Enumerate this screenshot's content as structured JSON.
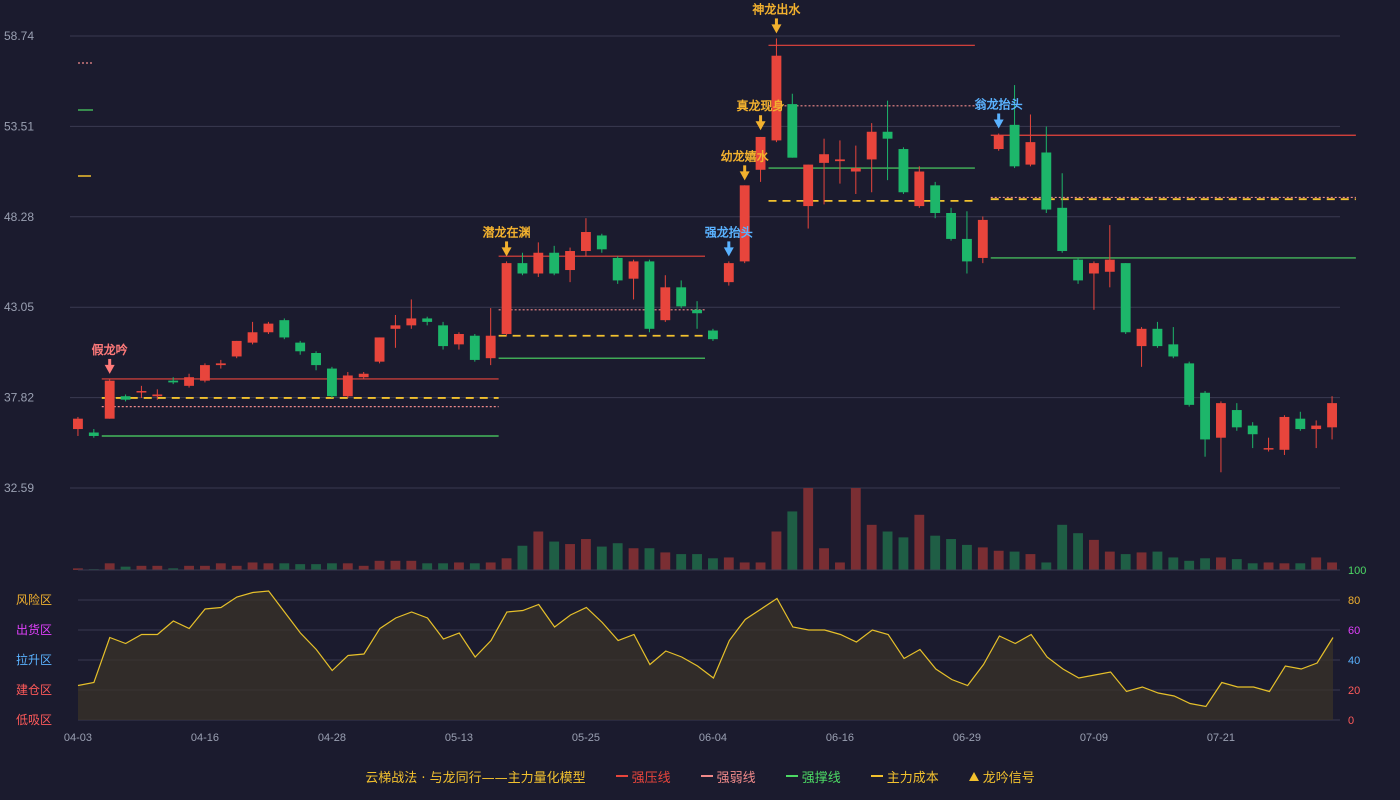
{
  "colors": {
    "background": "#1b1b2e",
    "up": "#e8453c",
    "down": "#1db66a",
    "grid": "#3a3a50",
    "axis_text": "#9aa0b2",
    "pressure": "#e8453c",
    "weak": "#f08a8a",
    "support": "#4cd964",
    "cost": "#f2c12e",
    "gold": "#f2b12e",
    "blue": "#5ab2ff",
    "pink": "#ff7a7a"
  },
  "legend": {
    "title": "云梯战法 · 与龙同行——主力量化模型",
    "pressure_label": "强压线",
    "weak_label": "强弱线",
    "support_label": "强撑线",
    "cost_label": "主力成本",
    "signal_label": "龙吟信号"
  },
  "chart_data": {
    "type": "candlestick",
    "y_ticks": [
      "58.74",
      "53.51",
      "48.28",
      "43.05",
      "37.82",
      "32.59"
    ],
    "ylim": [
      32.59,
      58.74
    ],
    "x_labels": [
      "04-03",
      "04-16",
      "04-28",
      "05-13",
      "05-25",
      "06-04",
      "06-16",
      "06-29",
      "07-09",
      "07-21"
    ],
    "x_label_index": [
      0,
      8,
      16,
      24,
      32,
      40,
      48,
      56,
      64,
      72
    ],
    "candles": [
      [
        36.0,
        36.6,
        35.6,
        36.7
      ],
      [
        35.8,
        35.6,
        35.5,
        36.0
      ],
      [
        36.6,
        38.8,
        36.6,
        38.9
      ],
      [
        37.9,
        37.7,
        37.6,
        38.0
      ],
      [
        38.2,
        38.2,
        37.8,
        38.5
      ],
      [
        37.9,
        38.0,
        37.7,
        38.3
      ],
      [
        38.8,
        38.7,
        38.6,
        39.0
      ],
      [
        38.5,
        39.0,
        38.4,
        39.2
      ],
      [
        38.8,
        39.7,
        38.7,
        39.8
      ],
      [
        39.7,
        39.8,
        39.5,
        40.0
      ],
      [
        40.2,
        41.1,
        40.1,
        41.1
      ],
      [
        41.0,
        41.6,
        40.9,
        42.2
      ],
      [
        41.6,
        42.1,
        41.5,
        42.2
      ],
      [
        42.3,
        41.3,
        41.2,
        42.4
      ],
      [
        41.0,
        40.5,
        40.3,
        41.1
      ],
      [
        40.4,
        39.7,
        39.4,
        40.5
      ],
      [
        39.5,
        37.9,
        37.8,
        39.6
      ],
      [
        37.9,
        39.1,
        37.8,
        39.3
      ],
      [
        39.0,
        39.2,
        38.9,
        39.3
      ],
      [
        39.9,
        41.3,
        39.8,
        41.3
      ],
      [
        41.8,
        42.0,
        40.7,
        42.6
      ],
      [
        42.0,
        42.4,
        41.8,
        43.5
      ],
      [
        42.4,
        42.2,
        42.0,
        42.5
      ],
      [
        42.0,
        40.8,
        40.6,
        42.2
      ],
      [
        40.9,
        41.5,
        40.6,
        41.6
      ],
      [
        41.4,
        40.0,
        39.9,
        41.5
      ],
      [
        40.1,
        41.4,
        39.7,
        43.0
      ],
      [
        41.5,
        45.6,
        41.4,
        45.7
      ],
      [
        45.6,
        45.0,
        44.9,
        46.2
      ],
      [
        45.0,
        46.2,
        44.8,
        46.8
      ],
      [
        46.2,
        45.0,
        44.9,
        46.6
      ],
      [
        45.2,
        46.3,
        44.5,
        46.5
      ],
      [
        46.3,
        47.4,
        46.0,
        48.2
      ],
      [
        47.2,
        46.4,
        46.2,
        47.3
      ],
      [
        45.9,
        44.6,
        44.4,
        46.0
      ],
      [
        44.7,
        45.7,
        43.5,
        45.8
      ],
      [
        45.7,
        41.8,
        41.6,
        45.8
      ],
      [
        42.3,
        44.2,
        42.2,
        44.9
      ],
      [
        44.2,
        43.1,
        43.0,
        44.6
      ],
      [
        42.9,
        42.7,
        41.8,
        43.4
      ],
      [
        41.7,
        41.2,
        41.1,
        41.8
      ],
      [
        44.5,
        45.6,
        44.3,
        45.7
      ],
      [
        45.7,
        50.1,
        45.6,
        50.1
      ],
      [
        51.0,
        52.9,
        50.3,
        52.9
      ],
      [
        52.7,
        57.6,
        52.6,
        58.6
      ],
      [
        54.8,
        51.7,
        51.7,
        55.4
      ],
      [
        48.9,
        51.3,
        47.6,
        51.3
      ],
      [
        51.4,
        51.9,
        49.0,
        52.8
      ],
      [
        51.5,
        51.6,
        50.2,
        52.7
      ],
      [
        50.9,
        51.1,
        49.6,
        52.4
      ],
      [
        51.6,
        53.2,
        49.7,
        53.7
      ],
      [
        53.2,
        52.8,
        50.4,
        55.0
      ],
      [
        52.2,
        49.7,
        49.6,
        52.3
      ],
      [
        48.9,
        50.9,
        48.8,
        51.2
      ],
      [
        50.1,
        48.5,
        48.2,
        50.3
      ],
      [
        48.5,
        47.0,
        46.9,
        48.8
      ],
      [
        47.0,
        45.7,
        45.0,
        48.6
      ],
      [
        45.9,
        48.1,
        45.6,
        48.3
      ],
      [
        52.2,
        53.0,
        52.1,
        53.1
      ],
      [
        53.6,
        51.2,
        51.1,
        55.9
      ],
      [
        51.3,
        52.6,
        51.2,
        54.2
      ],
      [
        52.0,
        48.7,
        48.5,
        53.5
      ],
      [
        48.8,
        46.3,
        46.2,
        50.8
      ],
      [
        45.8,
        44.6,
        44.4,
        45.9
      ],
      [
        45.0,
        45.6,
        42.9,
        45.7
      ],
      [
        45.1,
        45.8,
        44.2,
        47.8
      ],
      [
        45.6,
        41.6,
        41.5,
        45.6
      ],
      [
        40.8,
        41.8,
        39.6,
        41.9
      ],
      [
        41.8,
        40.8,
        40.7,
        42.2
      ],
      [
        40.9,
        40.2,
        40.1,
        41.9
      ],
      [
        39.8,
        37.4,
        37.3,
        39.9
      ],
      [
        38.1,
        35.4,
        34.4,
        38.2
      ],
      [
        35.5,
        37.5,
        33.5,
        37.6
      ],
      [
        37.1,
        36.1,
        35.9,
        37.5
      ],
      [
        36.2,
        35.7,
        34.9,
        36.4
      ],
      [
        34.9,
        34.9,
        34.7,
        35.5
      ],
      [
        34.8,
        36.7,
        34.5,
        36.8
      ],
      [
        36.6,
        36.0,
        35.9,
        37.0
      ],
      [
        36.0,
        36.2,
        34.9,
        36.5
      ],
      [
        36.1,
        37.5,
        35.4,
        37.9
      ]
    ],
    "volume": [
      2,
      1,
      8,
      4,
      5,
      5,
      2,
      5,
      5,
      8,
      5,
      9,
      8,
      8,
      7,
      7,
      8,
      8,
      5,
      11,
      11,
      11,
      8,
      8,
      9,
      8,
      9,
      14,
      29,
      46,
      34,
      31,
      37,
      28,
      32,
      26,
      26,
      21,
      19,
      19,
      14,
      15,
      9,
      9,
      46,
      70,
      98,
      26,
      9,
      98,
      54,
      46,
      39,
      66,
      41,
      37,
      30,
      27,
      23,
      22,
      19,
      9,
      54,
      44,
      36,
      22,
      19,
      21,
      22,
      15,
      11,
      14,
      15,
      13,
      8,
      9,
      8,
      8,
      15,
      9
    ]
  },
  "levels": {
    "pressure": [
      {
        "from": 2,
        "to": 26,
        "value": 38.9
      },
      {
        "from": 27,
        "to": 39,
        "value": 46.0
      },
      {
        "from": 44,
        "to": 56,
        "value": 58.2
      },
      {
        "from": 58,
        "to": 80,
        "value": 53.0
      }
    ],
    "weak": [
      {
        "from": 2,
        "to": 26,
        "value": 37.3
      },
      {
        "from": 27,
        "to": 39,
        "value": 42.9
      },
      {
        "from": 44,
        "to": 56,
        "value": 54.7
      },
      {
        "from": 58,
        "to": 80,
        "value": 49.4
      }
    ],
    "support": [
      {
        "from": 2,
        "to": 26,
        "value": 35.6
      },
      {
        "from": 27,
        "to": 39,
        "value": 40.1
      },
      {
        "from": 44,
        "to": 56,
        "value": 51.1
      },
      {
        "from": 58,
        "to": 80,
        "value": 45.9
      }
    ],
    "cost": [
      {
        "from": 2,
        "to": 26,
        "value": 37.8
      },
      {
        "from": 27,
        "to": 39,
        "value": 41.4
      },
      {
        "from": 44,
        "to": 56,
        "value": 49.2
      },
      {
        "from": 58,
        "to": 80,
        "value": 49.3
      }
    ]
  },
  "signals": [
    {
      "index": 2,
      "text": "假龙吟",
      "color": "pink",
      "value": 38.9
    },
    {
      "index": 27,
      "text": "潜龙在渊",
      "color": "gold",
      "value": 45.7
    },
    {
      "index": 41,
      "text": "强龙抬头",
      "color": "blue",
      "value": 45.7
    },
    {
      "index": 42,
      "text": "幼龙嬉水",
      "color": "gold",
      "value": 50.1
    },
    {
      "index": 43,
      "text": "真龙现身",
      "color": "gold",
      "value": 53.0
    },
    {
      "index": 44,
      "text": "神龙出水",
      "color": "gold",
      "value": 58.6
    },
    {
      "index": 58,
      "text": "翁龙抬头",
      "color": "blue",
      "value": 53.1
    }
  ],
  "oscillator": {
    "zones": [
      {
        "label": "风险区",
        "color": "#f2b12e"
      },
      {
        "label": "出货区",
        "color": "#e040fb"
      },
      {
        "label": "拉升区",
        "color": "#5ab2ff"
      },
      {
        "label": "建仓区",
        "color": "#ff5a5a"
      },
      {
        "label": "低吸区",
        "color": "#ff5a5a"
      }
    ],
    "ticks": [
      {
        "label": "100",
        "color": "#4cd964"
      },
      {
        "label": "80",
        "color": "#f2b12e"
      },
      {
        "label": "60",
        "color": "#e040fb"
      },
      {
        "label": "40",
        "color": "#5ab2ff"
      },
      {
        "label": "20",
        "color": "#ff5a5a"
      },
      {
        "label": "0",
        "color": "#ff5a5a"
      }
    ],
    "values": [
      23,
      25,
      55,
      51,
      57,
      57,
      66,
      61,
      74,
      75,
      82,
      85,
      86,
      72,
      58,
      47,
      33,
      43,
      44,
      61,
      68,
      72,
      68,
      54,
      58,
      42,
      53,
      72,
      73,
      77,
      62,
      70,
      75,
      65,
      53,
      57,
      37,
      46,
      42,
      36,
      28,
      53,
      67,
      74,
      81,
      62,
      60,
      60,
      57,
      52,
      60,
      57,
      41,
      47,
      34,
      27,
      23,
      37,
      56,
      51,
      57,
      42,
      34,
      28,
      30,
      32,
      19,
      22,
      18,
      16,
      11,
      9,
      25,
      22,
      22,
      19,
      36,
      34,
      38,
      55
    ]
  }
}
